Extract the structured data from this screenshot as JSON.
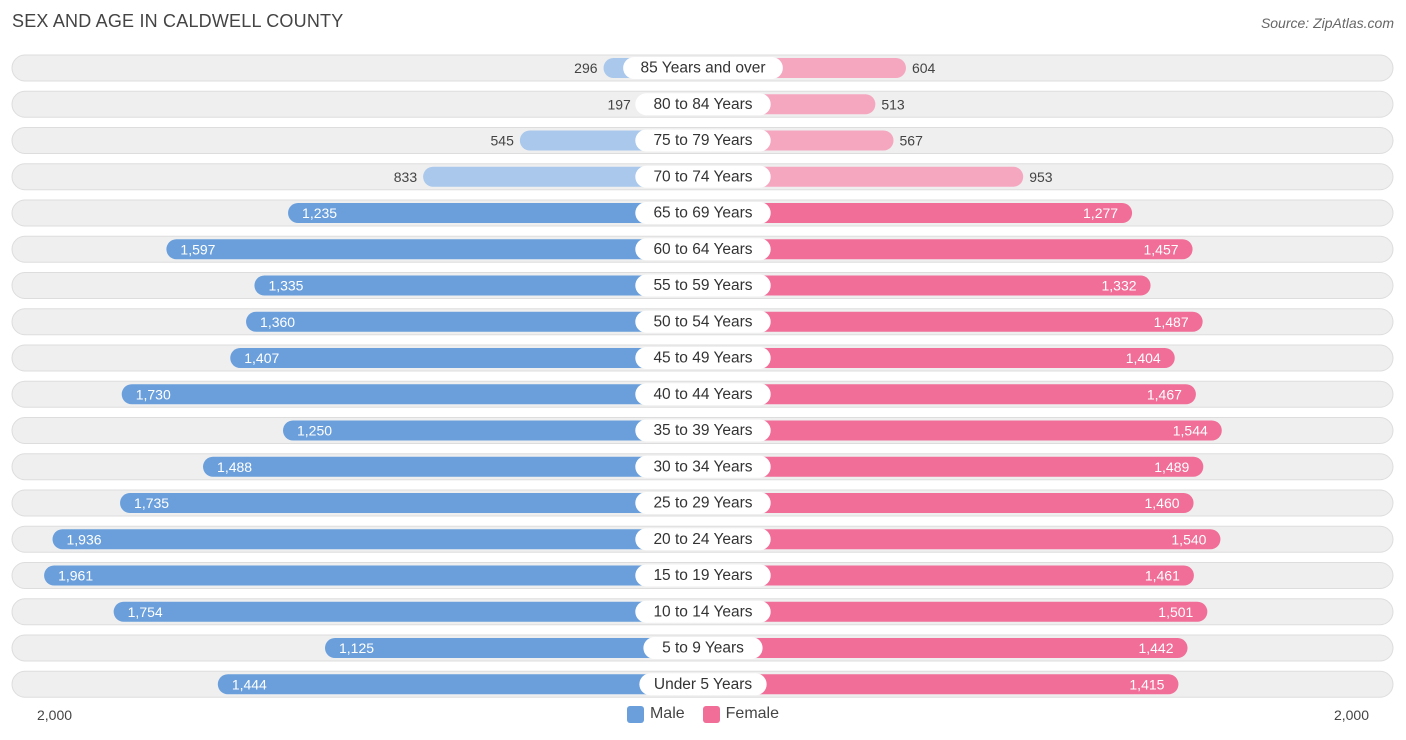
{
  "header": {
    "title": "SEX AND AGE IN CALDWELL COUNTY",
    "source": "Source: ZipAtlas.com"
  },
  "axis": {
    "left_label": "2,000",
    "right_label": "2,000"
  },
  "legend": {
    "male_label": "Male",
    "female_label": "Female"
  },
  "colors": {
    "male_strong": "#6a9fdc",
    "male_light": "#a9c8ec",
    "female_strong": "#f06e98",
    "female_light": "#f5a7c0",
    "row_background": "#efefef"
  },
  "chart_data": {
    "type": "bar",
    "orientation": "horizontal-diverging",
    "xlim": [
      -2000,
      2000
    ],
    "categories": [
      "85 Years and over",
      "80 to 84 Years",
      "75 to 79 Years",
      "70 to 74 Years",
      "65 to 69 Years",
      "60 to 64 Years",
      "55 to 59 Years",
      "50 to 54 Years",
      "45 to 49 Years",
      "40 to 44 Years",
      "35 to 39 Years",
      "30 to 34 Years",
      "25 to 29 Years",
      "20 to 24 Years",
      "15 to 19 Years",
      "10 to 14 Years",
      "5 to 9 Years",
      "Under 5 Years"
    ],
    "series": [
      {
        "name": "Male",
        "values": [
          296,
          197,
          545,
          833,
          1235,
          1597,
          1335,
          1360,
          1407,
          1730,
          1250,
          1488,
          1735,
          1936,
          1961,
          1754,
          1125,
          1444
        ],
        "labels": [
          "296",
          "197",
          "545",
          "833",
          "1,235",
          "1,597",
          "1,335",
          "1,360",
          "1,407",
          "1,730",
          "1,250",
          "1,488",
          "1,735",
          "1,936",
          "1,961",
          "1,754",
          "1,125",
          "1,444"
        ]
      },
      {
        "name": "Female",
        "values": [
          604,
          513,
          567,
          953,
          1277,
          1457,
          1332,
          1487,
          1404,
          1467,
          1544,
          1489,
          1460,
          1540,
          1461,
          1501,
          1442,
          1415
        ],
        "labels": [
          "604",
          "513",
          "567",
          "953",
          "1,277",
          "1,457",
          "1,332",
          "1,487",
          "1,404",
          "1,467",
          "1,544",
          "1,489",
          "1,460",
          "1,540",
          "1,461",
          "1,501",
          "1,442",
          "1,415"
        ]
      }
    ],
    "legend_position": "bottom-center",
    "grid": false
  }
}
